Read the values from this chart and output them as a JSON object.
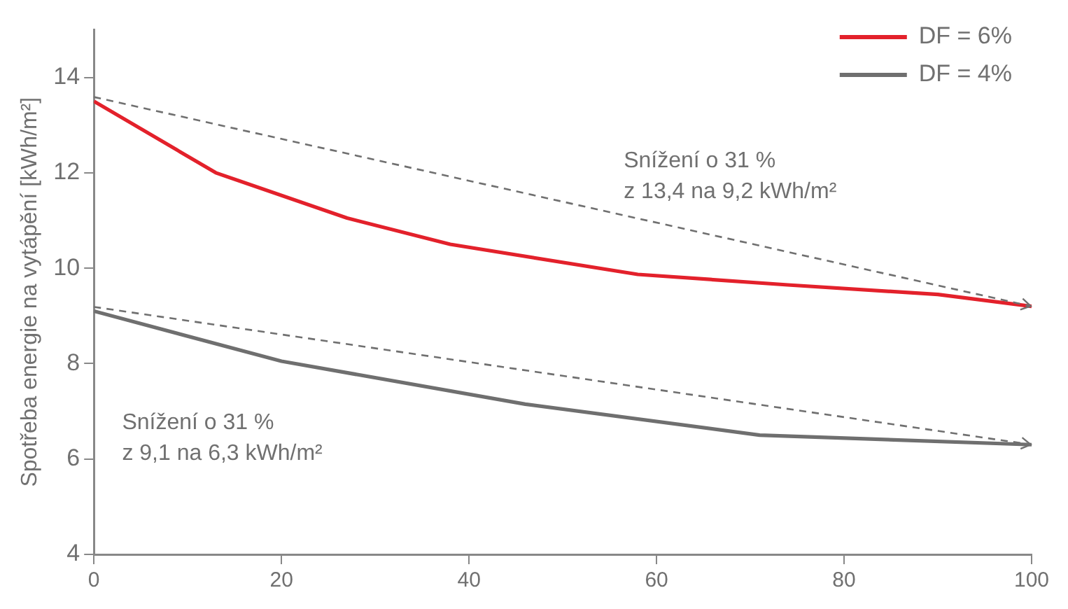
{
  "chart_data": {
    "type": "line",
    "ylabel": "Spotřeba energie na vytápění [kWh/m²]",
    "xlim": [
      0,
      100
    ],
    "xticks": [
      0,
      20,
      40,
      60,
      80,
      100
    ],
    "ylim": [
      4,
      15
    ],
    "yticks": [
      4,
      6,
      8,
      10,
      12,
      14
    ],
    "grid": false,
    "legend": "top right",
    "line_style": "solid",
    "marker": "none",
    "series": [
      {
        "name": "DF = 6%",
        "color": "#e3212b",
        "x": [
          0,
          13,
          27,
          38,
          58,
          74,
          90,
          100
        ],
        "values": [
          13.5,
          12.0,
          11.05,
          10.5,
          9.87,
          9.65,
          9.45,
          9.2
        ]
      },
      {
        "name": "DF = 4%",
        "color": "#6f6f6f",
        "x": [
          0,
          20,
          46,
          71,
          100
        ],
        "values": [
          9.1,
          8.05,
          7.15,
          6.5,
          6.3
        ]
      }
    ],
    "annotations": [
      "Snížení o 31 %\nz 13,4 na 9,2 kWh/m²",
      "Snížení o 31 %\nz 9,1 na 6,3 kWh/m²"
    ]
  }
}
